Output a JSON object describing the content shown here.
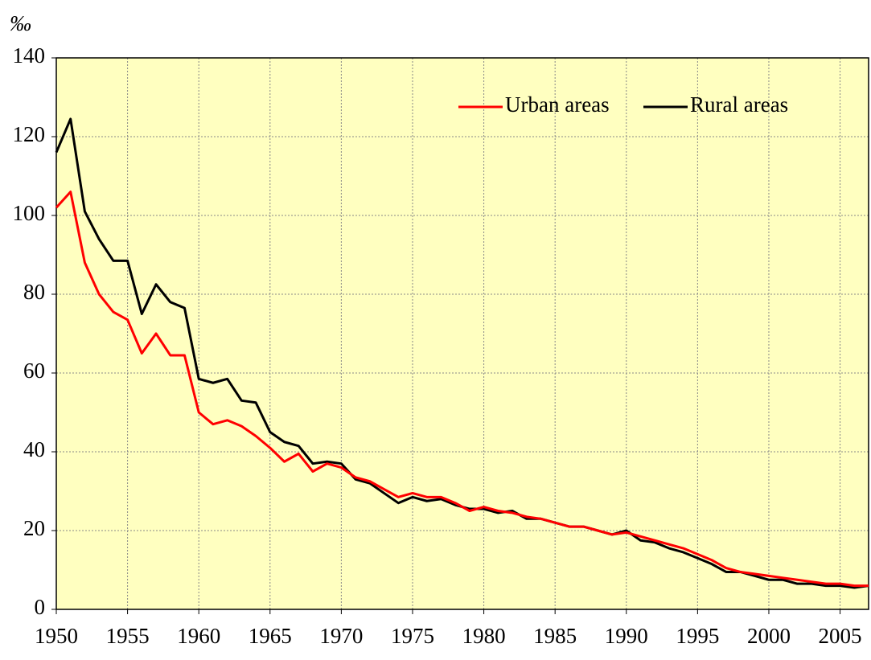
{
  "chart_data": {
    "type": "line",
    "y_label": "‰",
    "x": [
      1950,
      1951,
      1952,
      1953,
      1954,
      1955,
      1956,
      1957,
      1958,
      1959,
      1960,
      1961,
      1962,
      1963,
      1964,
      1965,
      1966,
      1967,
      1968,
      1969,
      1970,
      1971,
      1972,
      1973,
      1974,
      1975,
      1976,
      1977,
      1978,
      1979,
      1980,
      1981,
      1982,
      1983,
      1984,
      1985,
      1986,
      1987,
      1988,
      1989,
      1990,
      1991,
      1992,
      1993,
      1994,
      1995,
      1996,
      1997,
      1998,
      1999,
      2000,
      2001,
      2002,
      2003,
      2004,
      2005,
      2006,
      2007
    ],
    "series": [
      {
        "name": "Urban areas",
        "color": "#ff0000",
        "values": [
          102,
          106,
          88,
          80,
          75.5,
          73.5,
          65,
          70,
          64.5,
          64.5,
          50,
          47,
          48,
          46.5,
          44,
          41,
          37.5,
          39.5,
          35,
          37,
          36,
          33.5,
          32.5,
          30.5,
          28.5,
          29.5,
          28.5,
          28.5,
          27,
          25,
          26,
          25,
          24.5,
          23.5,
          23,
          22,
          21,
          21,
          20,
          19,
          19.5,
          18.5,
          17.5,
          16.5,
          15.5,
          14,
          12.5,
          10.5,
          9.5,
          9,
          8.5,
          8,
          7.5,
          7,
          6.5,
          6.5,
          6,
          6
        ]
      },
      {
        "name": "Rural areas",
        "color": "#000000",
        "values": [
          116,
          124.5,
          101,
          94,
          88.5,
          88.5,
          75,
          82.5,
          78,
          76.5,
          58.5,
          57.5,
          58.5,
          53,
          52.5,
          45,
          42.5,
          41.5,
          37,
          37.5,
          37,
          33,
          32,
          29.5,
          27,
          28.5,
          27.5,
          28,
          26.5,
          25.5,
          25.5,
          24.5,
          25,
          23,
          23,
          22,
          21,
          21,
          20,
          19,
          20,
          17.5,
          17,
          15.5,
          14.5,
          13,
          11.5,
          9.5,
          9.5,
          8.5,
          7.5,
          7.5,
          6.5,
          6.5,
          6,
          6,
          5.5,
          6
        ]
      }
    ],
    "xlim": [
      1950,
      2007
    ],
    "xticks": [
      1950,
      1955,
      1960,
      1965,
      1970,
      1975,
      1980,
      1985,
      1990,
      1995,
      2000,
      2005
    ],
    "ylim": [
      0,
      140
    ],
    "yticks": [
      0,
      20,
      40,
      60,
      80,
      100,
      120,
      140
    ],
    "grid": true,
    "legend": "upper right",
    "background": "#ffffc0"
  }
}
